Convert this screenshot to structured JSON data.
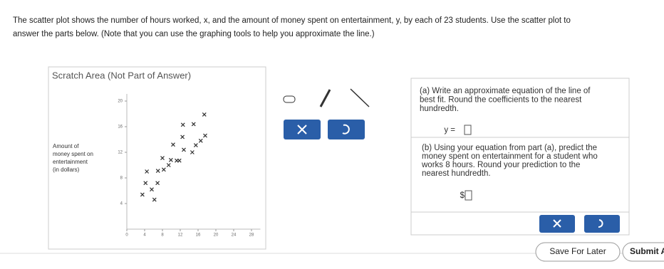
{
  "question": [
    "The scatter plot shows the number of hours worked, x, and the amount of money spent on entertainment, y, by each of 23 students. Use the scatter plot to",
    "answer the parts below. (Note that you can use the graphing tools to help you approximate the line.)"
  ],
  "scratch_area": {
    "title": "Scratch Area (Not Part of Answer)",
    "plot": {
      "type": "scatter",
      "y_label": [
        "Amount of",
        "money spent on",
        "entertainment",
        "(in dollars)"
      ],
      "x": [
        3.5,
        6.2,
        4.2,
        6.9,
        5.6,
        4.5,
        7.0,
        8.3,
        9.4,
        8.0,
        9.9,
        11.2,
        11.8,
        10.4,
        12.8,
        14.7,
        15.5,
        12.5,
        16.6,
        17.6,
        12.6,
        15.0,
        17.4
      ],
      "y": [
        5.4,
        4.6,
        7.2,
        7.2,
        6.2,
        9.0,
        9.1,
        9.3,
        10.0,
        11.1,
        10.8,
        10.7,
        10.7,
        13.2,
        12.4,
        12.0,
        13.1,
        14.4,
        13.8,
        14.6,
        16.3,
        16.4,
        17.9
      ],
      "xlim": [
        0,
        30
      ],
      "ylim": [
        0,
        20
      ],
      "xticks": [
        0,
        4,
        8,
        12,
        16,
        20,
        24,
        28
      ],
      "yticks": [
        4,
        8,
        12,
        16,
        20
      ]
    }
  },
  "part_a": {
    "lines": [
      "(a) Write an approximate equation of the line of",
      "best fit. Round the coefficients to the nearest",
      "hundredth."
    ],
    "answer_prefix": "y ="
  },
  "part_b": {
    "lines": [
      "(b) Using your equation from part (a), predict the",
      "money spent on entertainment for a student who",
      "works 8 hours. Round your prediction to the",
      "nearest hundredth."
    ],
    "answer_prefix": "$"
  },
  "buttons": {
    "save": "Save For Later",
    "submit": "Submit A"
  }
}
